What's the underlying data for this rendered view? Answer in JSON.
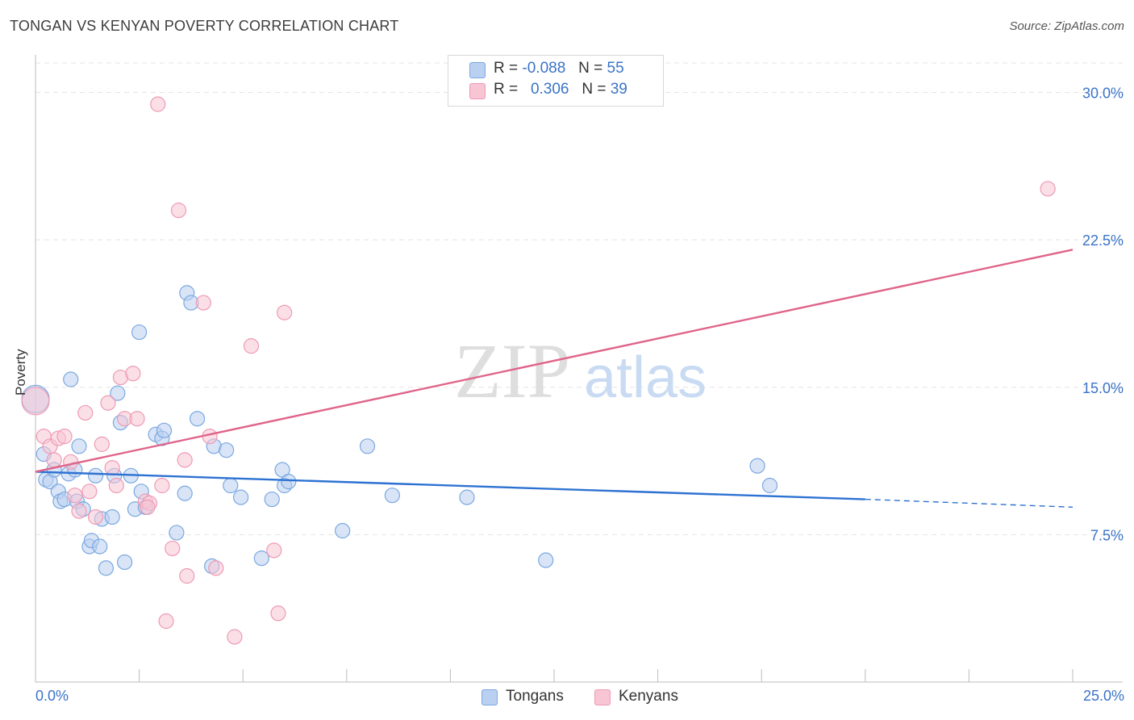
{
  "chart_data": {
    "type": "scatter",
    "title": "TONGAN VS KENYAN POVERTY CORRELATION CHART",
    "source": "Source: ZipAtlas.com",
    "xlabel": "",
    "ylabel": "Poverty",
    "xlim": [
      0,
      25
    ],
    "ylim": [
      0,
      31.5
    ],
    "x_tick_labels": {
      "min": "0.0%",
      "max": "25.0%"
    },
    "y_ticks": [
      {
        "value": 7.5,
        "label": "7.5%"
      },
      {
        "value": 15.0,
        "label": "15.0%"
      },
      {
        "value": 22.5,
        "label": "22.5%"
      },
      {
        "value": 30.0,
        "label": "30.0%"
      }
    ],
    "watermark": {
      "zip": "ZIP",
      "atlas": "atlas"
    },
    "legend": [
      {
        "r_label": "R =",
        "r_value": "-0.088",
        "n_label": "N =",
        "n_value": "55"
      },
      {
        "r_label": "R =",
        "r_value": "0.306",
        "n_label": "N =",
        "n_value": "39"
      }
    ],
    "series": [
      {
        "name": "Tongans",
        "color": "#7aa8e0",
        "fill": "#b9d0f0",
        "line_color": "#2d72d2",
        "trend": {
          "x0": 0,
          "y0": 10.7,
          "x1": 20,
          "y1": 9.3,
          "dash_to_x": 25,
          "dash_to_y": 8.9
        },
        "points": [
          [
            0.0,
            14.4
          ],
          [
            0.2,
            11.6
          ],
          [
            0.25,
            10.3
          ],
          [
            0.35,
            10.2
          ],
          [
            0.45,
            10.8
          ],
          [
            0.55,
            9.7
          ],
          [
            0.6,
            9.2
          ],
          [
            0.7,
            9.3
          ],
          [
            0.8,
            10.6
          ],
          [
            0.85,
            15.4
          ],
          [
            0.95,
            10.8
          ],
          [
            1.0,
            9.2
          ],
          [
            1.05,
            12.0
          ],
          [
            1.15,
            8.8
          ],
          [
            1.3,
            6.9
          ],
          [
            1.35,
            7.2
          ],
          [
            1.45,
            10.5
          ],
          [
            1.55,
            6.9
          ],
          [
            1.6,
            8.3
          ],
          [
            1.7,
            5.8
          ],
          [
            1.85,
            8.4
          ],
          [
            1.9,
            10.5
          ],
          [
            1.98,
            14.7
          ],
          [
            2.05,
            13.2
          ],
          [
            2.15,
            6.1
          ],
          [
            2.3,
            10.5
          ],
          [
            2.4,
            8.8
          ],
          [
            2.5,
            17.8
          ],
          [
            2.55,
            9.7
          ],
          [
            2.65,
            8.9
          ],
          [
            2.9,
            12.6
          ],
          [
            3.05,
            12.4
          ],
          [
            3.1,
            12.8
          ],
          [
            3.4,
            7.6
          ],
          [
            3.6,
            9.6
          ],
          [
            3.65,
            19.8
          ],
          [
            3.75,
            19.3
          ],
          [
            3.9,
            13.4
          ],
          [
            4.25,
            5.9
          ],
          [
            4.3,
            12.0
          ],
          [
            4.6,
            11.8
          ],
          [
            4.7,
            10.0
          ],
          [
            4.95,
            9.4
          ],
          [
            5.45,
            6.3
          ],
          [
            5.7,
            9.3
          ],
          [
            5.95,
            10.8
          ],
          [
            6.0,
            10.0
          ],
          [
            6.1,
            10.2
          ],
          [
            7.4,
            7.7
          ],
          [
            8.0,
            12.0
          ],
          [
            8.6,
            9.5
          ],
          [
            10.4,
            9.4
          ],
          [
            12.3,
            6.2
          ],
          [
            17.4,
            11.0
          ],
          [
            17.7,
            10.0
          ]
        ]
      },
      {
        "name": "Kenyans",
        "color": "#ee9ab4",
        "fill": "#f8c5d4",
        "line_color": "#e0648a",
        "trend": {
          "x0": 0,
          "y0": 10.7,
          "x1": 25,
          "y1": 22.0
        },
        "points": [
          [
            0.0,
            14.3
          ],
          [
            0.2,
            12.5
          ],
          [
            0.35,
            12.0
          ],
          [
            0.45,
            11.3
          ],
          [
            0.55,
            12.4
          ],
          [
            0.7,
            12.5
          ],
          [
            0.85,
            11.2
          ],
          [
            0.95,
            9.5
          ],
          [
            1.05,
            8.7
          ],
          [
            1.2,
            13.7
          ],
          [
            1.3,
            9.7
          ],
          [
            1.45,
            8.4
          ],
          [
            1.6,
            12.1
          ],
          [
            1.75,
            14.2
          ],
          [
            1.85,
            10.9
          ],
          [
            1.95,
            10.0
          ],
          [
            2.05,
            15.5
          ],
          [
            2.15,
            13.4
          ],
          [
            2.35,
            15.7
          ],
          [
            2.45,
            13.4
          ],
          [
            2.65,
            9.2
          ],
          [
            2.75,
            9.1
          ],
          [
            2.95,
            29.4
          ],
          [
            3.05,
            10.0
          ],
          [
            3.15,
            3.1
          ],
          [
            3.3,
            6.8
          ],
          [
            3.45,
            24.0
          ],
          [
            3.6,
            11.3
          ],
          [
            3.65,
            5.4
          ],
          [
            4.05,
            19.3
          ],
          [
            4.2,
            12.5
          ],
          [
            4.35,
            5.8
          ],
          [
            4.8,
            2.3
          ],
          [
            5.2,
            17.1
          ],
          [
            5.75,
            6.7
          ],
          [
            5.85,
            3.5
          ],
          [
            6.0,
            18.8
          ],
          [
            24.4,
            25.1
          ],
          [
            2.7,
            8.9
          ]
        ]
      }
    ]
  }
}
